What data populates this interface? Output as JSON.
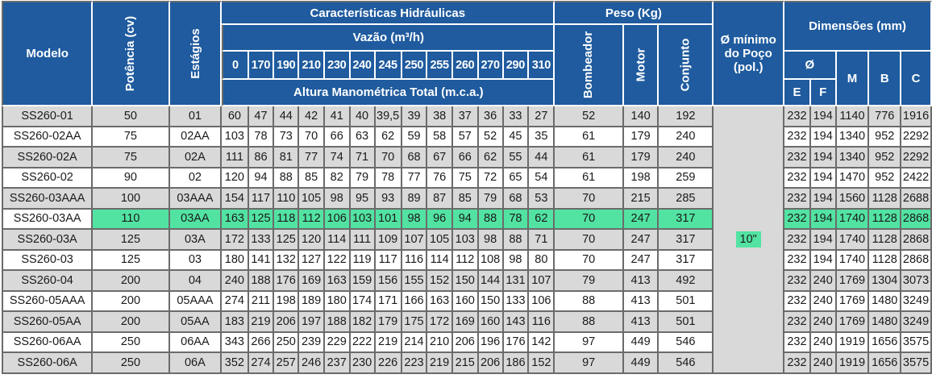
{
  "header": {
    "modelo": "Modelo",
    "potencia": "Potência (cv)",
    "estagios": "Estágios",
    "caracteristicas": "Características Hidráulicas",
    "vazao": "Vazão (m³/h)",
    "flows": [
      "0",
      "170",
      "190",
      "210",
      "230",
      "240",
      "245",
      "250",
      "255",
      "260",
      "270",
      "290",
      "310"
    ],
    "altura": "Altura Manométrica Total (m.c.a.)",
    "peso": "Peso (Kg)",
    "bombeador": "Bombeador",
    "motor": "Motor",
    "conjunto": "Conjunto",
    "diametro_line1": "Ø mínimo",
    "diametro_line2": "do Poço",
    "diametro_line3": "(pol.)",
    "dimensoes": "Dimensões (mm)",
    "phi": "Ø",
    "e": "E",
    "f": "F",
    "m": "M",
    "b": "B",
    "c": "C"
  },
  "diametro_valor": "10\"",
  "highlight_color": "#52e3a2",
  "header_color": "#1f5b9e",
  "rows": [
    {
      "modelo": "SS260-01",
      "potencia": "50",
      "estagios": "01",
      "alturas": [
        "60",
        "47",
        "44",
        "42",
        "41",
        "40",
        "39,5",
        "39",
        "38",
        "37",
        "36",
        "33",
        "27"
      ],
      "bombeador": "52",
      "motor": "140",
      "conjunto": "192",
      "e": "232",
      "f": "194",
      "m": "1140",
      "b": "776",
      "c": "1916"
    },
    {
      "modelo": "SS260-02AA",
      "potencia": "75",
      "estagios": "02AA",
      "alturas": [
        "103",
        "78",
        "73",
        "70",
        "66",
        "63",
        "62",
        "59",
        "58",
        "57",
        "52",
        "45",
        "35"
      ],
      "bombeador": "61",
      "motor": "179",
      "conjunto": "240",
      "e": "232",
      "f": "194",
      "m": "1340",
      "b": "952",
      "c": "2292"
    },
    {
      "modelo": "SS260-02A",
      "potencia": "75",
      "estagios": "02A",
      "alturas": [
        "111",
        "86",
        "81",
        "77",
        "74",
        "71",
        "70",
        "68",
        "67",
        "66",
        "62",
        "55",
        "44"
      ],
      "bombeador": "61",
      "motor": "179",
      "conjunto": "240",
      "e": "232",
      "f": "194",
      "m": "1340",
      "b": "952",
      "c": "2292"
    },
    {
      "modelo": "SS260-02",
      "potencia": "90",
      "estagios": "02",
      "alturas": [
        "120",
        "94",
        "88",
        "85",
        "82",
        "79",
        "78",
        "77",
        "76",
        "75",
        "72",
        "65",
        "54"
      ],
      "bombeador": "61",
      "motor": "198",
      "conjunto": "259",
      "e": "232",
      "f": "194",
      "m": "1470",
      "b": "952",
      "c": "2422"
    },
    {
      "modelo": "SS260-03AAA",
      "potencia": "100",
      "estagios": "03AAA",
      "alturas": [
        "154",
        "117",
        "110",
        "105",
        "98",
        "95",
        "93",
        "89",
        "87",
        "85",
        "79",
        "68",
        "53"
      ],
      "bombeador": "70",
      "motor": "215",
      "conjunto": "285",
      "e": "232",
      "f": "194",
      "m": "1560",
      "b": "1128",
      "c": "2688"
    },
    {
      "modelo": "SS260-03AA",
      "potencia": "110",
      "estagios": "03AA",
      "alturas": [
        "163",
        "125",
        "118",
        "112",
        "106",
        "103",
        "101",
        "98",
        "96",
        "94",
        "88",
        "78",
        "62"
      ],
      "bombeador": "70",
      "motor": "247",
      "conjunto": "317",
      "e": "232",
      "f": "194",
      "m": "1740",
      "b": "1128",
      "c": "2868",
      "highlight": true
    },
    {
      "modelo": "SS260-03A",
      "potencia": "125",
      "estagios": "03A",
      "alturas": [
        "172",
        "133",
        "125",
        "120",
        "114",
        "111",
        "109",
        "107",
        "105",
        "103",
        "98",
        "88",
        "71"
      ],
      "bombeador": "70",
      "motor": "247",
      "conjunto": "317",
      "e": "232",
      "f": "194",
      "m": "1740",
      "b": "1128",
      "c": "2868"
    },
    {
      "modelo": "SS260-03",
      "potencia": "125",
      "estagios": "03",
      "alturas": [
        "180",
        "141",
        "132",
        "127",
        "122",
        "119",
        "117",
        "116",
        "114",
        "112",
        "108",
        "98",
        "80"
      ],
      "bombeador": "70",
      "motor": "247",
      "conjunto": "317",
      "e": "232",
      "f": "194",
      "m": "1740",
      "b": "1128",
      "c": "2868"
    },
    {
      "modelo": "SS260-04",
      "potencia": "200",
      "estagios": "04",
      "alturas": [
        "240",
        "188",
        "176",
        "169",
        "163",
        "159",
        "156",
        "155",
        "152",
        "150",
        "144",
        "131",
        "107"
      ],
      "bombeador": "79",
      "motor": "413",
      "conjunto": "492",
      "e": "232",
      "f": "240",
      "m": "1769",
      "b": "1304",
      "c": "3073"
    },
    {
      "modelo": "SS260-05AAA",
      "potencia": "200",
      "estagios": "05AAA",
      "alturas": [
        "274",
        "211",
        "198",
        "189",
        "180",
        "174",
        "171",
        "166",
        "163",
        "160",
        "150",
        "133",
        "106"
      ],
      "bombeador": "88",
      "motor": "413",
      "conjunto": "501",
      "e": "232",
      "f": "240",
      "m": "1769",
      "b": "1480",
      "c": "3249"
    },
    {
      "modelo": "SS260-05AA",
      "potencia": "200",
      "estagios": "05AA",
      "alturas": [
        "183",
        "219",
        "206",
        "197",
        "188",
        "182",
        "179",
        "175",
        "172",
        "169",
        "160",
        "143",
        "116"
      ],
      "bombeador": "88",
      "motor": "413",
      "conjunto": "501",
      "e": "232",
      "f": "240",
      "m": "1769",
      "b": "1480",
      "c": "3249"
    },
    {
      "modelo": "SS260-06AA",
      "potencia": "250",
      "estagios": "06AA",
      "alturas": [
        "343",
        "266",
        "250",
        "239",
        "229",
        "222",
        "219",
        "214",
        "210",
        "206",
        "196",
        "176",
        "142"
      ],
      "bombeador": "97",
      "motor": "449",
      "conjunto": "546",
      "e": "232",
      "f": "240",
      "m": "1919",
      "b": "1656",
      "c": "3575"
    },
    {
      "modelo": "SS260-06A",
      "potencia": "250",
      "estagios": "06A",
      "alturas": [
        "352",
        "274",
        "257",
        "246",
        "237",
        "230",
        "226",
        "223",
        "219",
        "215",
        "206",
        "186",
        "152"
      ],
      "bombeador": "97",
      "motor": "449",
      "conjunto": "546",
      "e": "232",
      "f": "240",
      "m": "1919",
      "b": "1656",
      "c": "3575"
    }
  ]
}
